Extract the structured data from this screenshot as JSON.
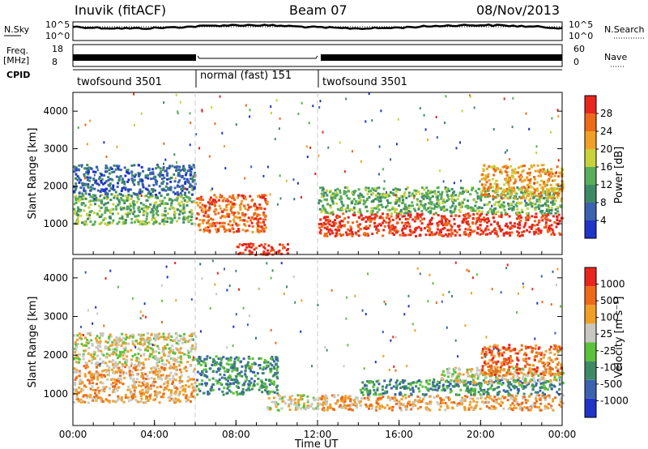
{
  "header": {
    "radar": "Inuvik (fitACF)",
    "beam": "Beam 07",
    "date": "08/Nov/2013"
  },
  "noise_panel": {
    "left_label": "N.Sky",
    "right_label": "N.Search",
    "left_ticks": [
      "10^5",
      "10^0"
    ],
    "right_ticks": [
      "10^5",
      "10^0"
    ]
  },
  "freq_panel": {
    "left_label_line1": "Freq.",
    "left_label_line2": "[MHz]",
    "right_label": "Nave",
    "left_ticks": [
      "18",
      "8"
    ],
    "right_ticks": [
      "60",
      "0"
    ]
  },
  "cpid_panel": {
    "label": "CPID",
    "segments": [
      {
        "text": "twofsound 3501",
        "start_h": 0,
        "end_h": 6
      },
      {
        "text": "normal (fast) 151",
        "start_h": 6,
        "end_h": 12
      },
      {
        "text": "twofsound 3501",
        "start_h": 12,
        "end_h": 24
      }
    ]
  },
  "chart_data": [
    {
      "type": "heatmap",
      "name": "power",
      "ylabel": "Slant Range [km]",
      "ylim": [
        180,
        4500
      ],
      "yticks": [
        1000,
        2000,
        3000,
        4000
      ],
      "xlim_hours": [
        0,
        24
      ],
      "colorbar_label": "Power [dB]",
      "colorbar_ticks": [
        "4",
        "8",
        "12",
        "16",
        "20",
        "24",
        "28"
      ],
      "colors": [
        "#1f34c8",
        "#3a62b0",
        "#3f8a66",
        "#5aae5a",
        "#c8d23a",
        "#f0a028",
        "#ec6a1a",
        "#e8261e"
      ],
      "bands": [
        {
          "t0": 0.0,
          "t1": 6.0,
          "r0": 1000,
          "r1": 1800,
          "level": 3
        },
        {
          "t0": 0.0,
          "t1": 6.0,
          "r0": 1800,
          "r1": 2600,
          "level": 1
        },
        {
          "t0": 6.0,
          "t1": 9.5,
          "r0": 800,
          "r1": 1800,
          "level": 6
        },
        {
          "t0": 8.0,
          "t1": 10.5,
          "r0": 200,
          "r1": 500,
          "level": 7
        },
        {
          "t0": 12.0,
          "t1": 24.0,
          "r0": 700,
          "r1": 1300,
          "level": 7
        },
        {
          "t0": 12.0,
          "t1": 24.0,
          "r0": 1300,
          "r1": 2000,
          "level": 3
        },
        {
          "t0": 20.0,
          "t1": 24.0,
          "r0": 1700,
          "r1": 2600,
          "level": 5
        }
      ]
    },
    {
      "type": "heatmap",
      "name": "velocity",
      "ylabel": "Slant Range [km]",
      "ylim": [
        180,
        4500
      ],
      "yticks": [
        1000,
        2000,
        3000,
        4000
      ],
      "xlim_hours": [
        0,
        24
      ],
      "xticks": [
        "00:00",
        "04:00",
        "08:00",
        "12:00",
        "16:00",
        "20:00",
        "00:00"
      ],
      "xlabel": "Time UT",
      "colorbar_label": "Velocity [m s⁻¹]",
      "colorbar_ticks": [
        "1000",
        "500",
        "100",
        "25",
        "-25",
        "-100",
        "-500",
        "-1000"
      ],
      "colors": [
        "#1f34c8",
        "#3a62b0",
        "#3f8a66",
        "#5cc23c",
        "#c8c8c0",
        "#f0a028",
        "#ec6a1a",
        "#e8261e"
      ],
      "bands": [
        {
          "t0": 0.0,
          "t1": 6.0,
          "r0": 800,
          "r1": 1800,
          "level": 5
        },
        {
          "t0": 0.0,
          "t1": 6.0,
          "r0": 1800,
          "r1": 2600,
          "level": 4
        },
        {
          "t0": 6.0,
          "t1": 10.0,
          "r0": 1000,
          "r1": 2000,
          "level": 2
        },
        {
          "t0": 9.5,
          "t1": 12.0,
          "r0": 600,
          "r1": 1000,
          "level": 4
        },
        {
          "t0": 12.0,
          "t1": 24.0,
          "r0": 600,
          "r1": 1000,
          "level": 5
        },
        {
          "t0": 14.0,
          "t1": 24.0,
          "r0": 1000,
          "r1": 1400,
          "level": 2
        },
        {
          "t0": 18.0,
          "t1": 24.0,
          "r0": 1300,
          "r1": 1700,
          "level": 4
        },
        {
          "t0": 20.0,
          "t1": 24.0,
          "r0": 1500,
          "r1": 2300,
          "level": 6
        }
      ]
    }
  ]
}
